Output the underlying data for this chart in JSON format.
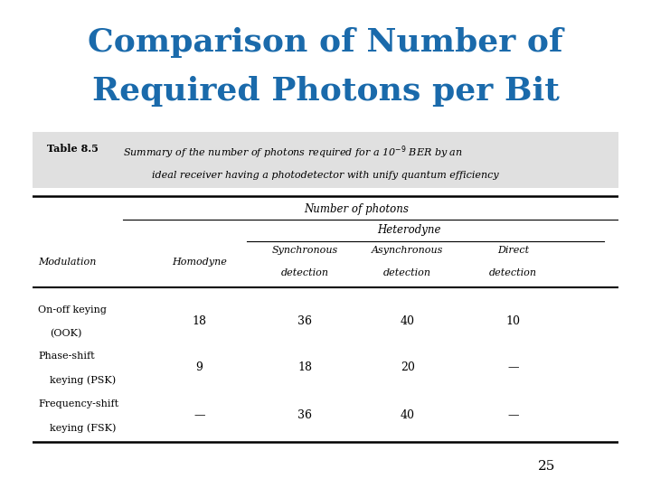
{
  "title_line1": "Comparison of Number of",
  "title_line2": "Required Photons per Bit",
  "title_color": "#1a6aab",
  "title_fontsize": 26,
  "table_label": "Table 8.5",
  "col_header_top": "Number of photons",
  "col_header_mid": "Heterodyne",
  "col_headers": [
    "Modulation",
    "Homodyne",
    "Synchronous\ndetection",
    "Asynchronous\ndetection",
    "Direct\ndetection"
  ],
  "rows": [
    [
      "On-off keying\n(OOK)",
      "18",
      "36",
      "40",
      "10"
    ],
    [
      "Phase-shift\nkeying (PSK)",
      "9",
      "18",
      "20",
      "—"
    ],
    [
      "Frequency-shift\nkeying (FSK)",
      "—",
      "36",
      "40",
      "—"
    ]
  ],
  "page_number": "25",
  "background_color": "#ffffff",
  "caption_bg": "#e0e0e0"
}
